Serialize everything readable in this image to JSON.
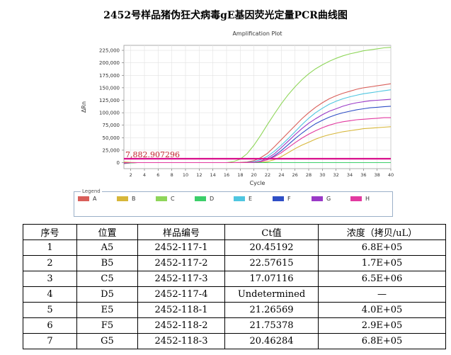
{
  "document": {
    "title": "2452号样品猪伪狂犬病毒gE基因荧光定量PCR曲线图"
  },
  "chart_data": {
    "type": "line",
    "title": "Amplification Plot",
    "xlabel": "Cycle",
    "ylabel": "ΔRn",
    "xlim": [
      1,
      40
    ],
    "ylim": [
      -12000,
      235000
    ],
    "xticks": [
      2,
      4,
      6,
      8,
      10,
      12,
      14,
      16,
      18,
      20,
      22,
      24,
      26,
      28,
      30,
      32,
      34,
      36,
      38,
      40
    ],
    "yticks": [
      0,
      25000,
      50000,
      75000,
      100000,
      125000,
      150000,
      175000,
      200000,
      225000
    ],
    "ytick_labels": [
      "0",
      "25,000",
      "50,000",
      "75,000",
      "100,000",
      "125,000",
      "150,000",
      "175,000",
      "200,000",
      "225,000"
    ],
    "grid": true,
    "threshold": {
      "value": 7882.907296,
      "label": "7,882.907296",
      "color": "#d80f8c"
    },
    "x": [
      1,
      2,
      3,
      4,
      5,
      6,
      7,
      8,
      9,
      10,
      11,
      12,
      13,
      14,
      15,
      16,
      17,
      18,
      19,
      20,
      21,
      22,
      23,
      24,
      25,
      26,
      27,
      28,
      29,
      30,
      31,
      32,
      33,
      34,
      35,
      36,
      37,
      38,
      39,
      40
    ],
    "series": [
      {
        "color": "#d95f5a",
        "values": [
          -2000,
          -500,
          0,
          0,
          0,
          0,
          0,
          0,
          0,
          0,
          0,
          0,
          0,
          0,
          0,
          0,
          0,
          500,
          1500,
          4000,
          10000,
          19000,
          32000,
          46000,
          60000,
          74000,
          88000,
          100000,
          111000,
          120000,
          128000,
          134000,
          139000,
          143000,
          147000,
          150000,
          152000,
          154000,
          156000,
          158000
        ]
      },
      {
        "color": "#d7b73a",
        "values": [
          1500,
          500,
          0,
          0,
          0,
          0,
          0,
          0,
          0,
          0,
          0,
          0,
          0,
          0,
          0,
          0,
          0,
          0,
          0,
          0,
          500,
          2000,
          6000,
          12000,
          20000,
          28000,
          35000,
          41000,
          47000,
          52000,
          56000,
          59000,
          62000,
          64000,
          66000,
          68000,
          69000,
          70000,
          71000,
          72000
        ]
      },
      {
        "color": "#8fd65a",
        "values": [
          0,
          0,
          0,
          0,
          0,
          0,
          0,
          0,
          0,
          0,
          0,
          0,
          0,
          0,
          0,
          0,
          2000,
          7000,
          18000,
          35000,
          55000,
          77000,
          98000,
          118000,
          136000,
          152000,
          166000,
          178000,
          188000,
          196000,
          203000,
          209000,
          214000,
          218000,
          221000,
          224000,
          226000,
          228000,
          230000,
          231000
        ]
      },
      {
        "color": "#3ccf6a",
        "values": [
          -1500,
          -500,
          0,
          0,
          0,
          0,
          0,
          0,
          0,
          0,
          0,
          0,
          0,
          0,
          0,
          0,
          0,
          0,
          0,
          0,
          0,
          0,
          0,
          0,
          0,
          0,
          0,
          0,
          0,
          0,
          0,
          0,
          0,
          0,
          0,
          0,
          0,
          0,
          0,
          0
        ]
      },
      {
        "color": "#4fc6e0",
        "values": [
          0,
          0,
          0,
          0,
          0,
          0,
          0,
          0,
          0,
          0,
          0,
          0,
          0,
          0,
          0,
          0,
          0,
          0,
          500,
          2000,
          6000,
          13000,
          23000,
          35000,
          48000,
          62000,
          76000,
          89000,
          100000,
          109000,
          117000,
          123000,
          128000,
          132000,
          135000,
          138000,
          140000,
          142000,
          144000,
          146000
        ]
      },
      {
        "color": "#2f4fc6",
        "values": [
          0,
          0,
          0,
          0,
          0,
          0,
          0,
          0,
          0,
          0,
          0,
          0,
          0,
          0,
          0,
          0,
          0,
          0,
          0,
          500,
          2000,
          6000,
          14000,
          24000,
          36000,
          48000,
          59000,
          69000,
          78000,
          85000,
          91000,
          96000,
          100000,
          103000,
          106000,
          108000,
          110000,
          111000,
          112000,
          113000
        ]
      },
      {
        "color": "#9a3ac7",
        "values": [
          -1000,
          0,
          0,
          0,
          0,
          0,
          0,
          0,
          0,
          0,
          0,
          0,
          0,
          0,
          0,
          0,
          0,
          0,
          0,
          500,
          3000,
          9000,
          18000,
          30000,
          43000,
          56000,
          68000,
          79000,
          88000,
          96000,
          103000,
          108000,
          113000,
          117000,
          120000,
          122000,
          124000,
          125000,
          126000,
          127000
        ]
      },
      {
        "color": "#e23aa0",
        "values": [
          0,
          0,
          0,
          0,
          0,
          0,
          0,
          0,
          0,
          0,
          0,
          0,
          0,
          0,
          0,
          0,
          0,
          0,
          0,
          500,
          2000,
          6000,
          12000,
          20000,
          30000,
          40000,
          49000,
          57000,
          64000,
          70000,
          75000,
          79000,
          82000,
          84000,
          86000,
          87000,
          88000,
          89000,
          90000,
          90000
        ]
      }
    ]
  },
  "legend": {
    "title": "Legend",
    "items": [
      {
        "label": "A",
        "color": "#d95f5a"
      },
      {
        "label": "B",
        "color": "#d7b73a"
      },
      {
        "label": "C",
        "color": "#8fd65a"
      },
      {
        "label": "D",
        "color": "#3ccf6a"
      },
      {
        "label": "E",
        "color": "#4fc6e0"
      },
      {
        "label": "F",
        "color": "#2f4fc6"
      },
      {
        "label": "G",
        "color": "#9a3ac7"
      },
      {
        "label": "H",
        "color": "#e23aa0"
      }
    ]
  },
  "table": {
    "headers": [
      "序号",
      "位置",
      "样品编号",
      "Ct值",
      "浓度（拷贝/uL）"
    ],
    "rows": [
      [
        "1",
        "A5",
        "2452-117-1",
        "20.45192",
        "6.8E+05"
      ],
      [
        "2",
        "B5",
        "2452-117-2",
        "22.57615",
        "1.7E+05"
      ],
      [
        "3",
        "C5",
        "2452-117-3",
        "17.07116",
        "6.5E+06"
      ],
      [
        "4",
        "D5",
        "2452-117-4",
        "Undetermined",
        "—"
      ],
      [
        "5",
        "E5",
        "2452-118-1",
        "21.26569",
        "4.0E+05"
      ],
      [
        "6",
        "F5",
        "2452-118-2",
        "21.75378",
        "2.9E+05"
      ],
      [
        "7",
        "G5",
        "2452-118-3",
        "20.46284",
        "6.8E+05"
      ]
    ]
  }
}
